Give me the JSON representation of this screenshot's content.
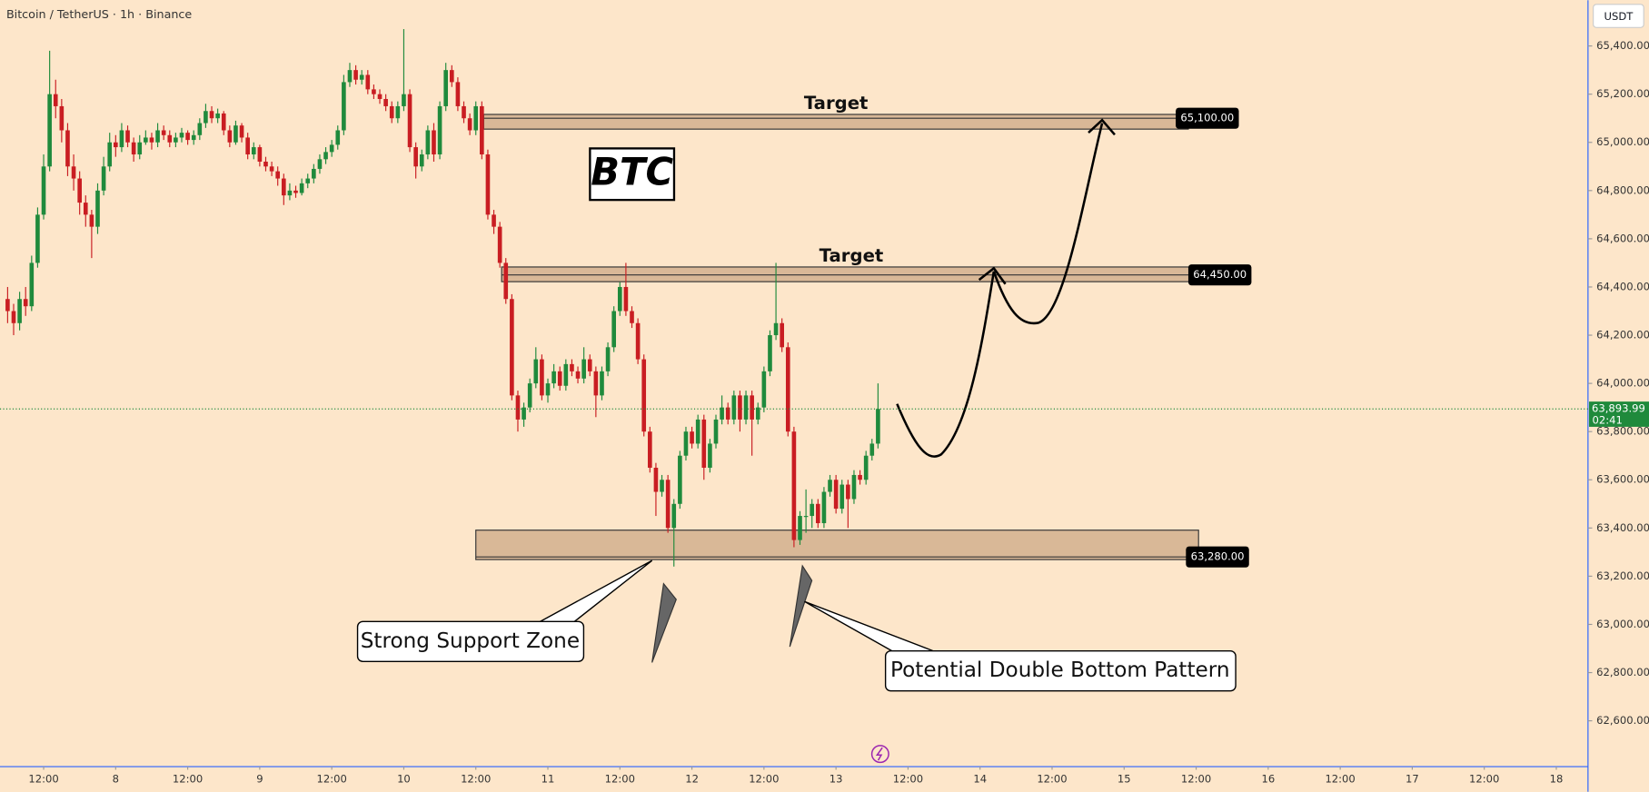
{
  "chart_data": {
    "type": "candlestick",
    "title": "Bitcoin / TetherUS · 1h · Binance",
    "currency": "USDT",
    "x": [
      -18,
      -17,
      -16,
      -15,
      -14,
      -13,
      -12,
      -11,
      -10,
      -9,
      -8,
      -7,
      -6,
      -5,
      -4,
      -3,
      -2,
      -1,
      0,
      1,
      2,
      3,
      4,
      5,
      6,
      7,
      8,
      9,
      10,
      11,
      12,
      13,
      14,
      15,
      16,
      17,
      18,
      19,
      20,
      21,
      22,
      23,
      24,
      25,
      26,
      27,
      28,
      29,
      30,
      31,
      32,
      33,
      34,
      35,
      36,
      37,
      38,
      39,
      40,
      41,
      42,
      43,
      44,
      45,
      46,
      47,
      48,
      49,
      50,
      51,
      52,
      53,
      54,
      55,
      56,
      57,
      58,
      59,
      60,
      61,
      62,
      63,
      64,
      65,
      66,
      67,
      68,
      69,
      70,
      71,
      72,
      73,
      74,
      75,
      76,
      77,
      78,
      79,
      80,
      81,
      82,
      83,
      84,
      85,
      86,
      87,
      88,
      89,
      90,
      91,
      92,
      93,
      94,
      95,
      96,
      97,
      98,
      99,
      100,
      101,
      102,
      103,
      104,
      105,
      106,
      107,
      108,
      109,
      110,
      111,
      112,
      113,
      114,
      115,
      116,
      117,
      118,
      119,
      120,
      121,
      122,
      123,
      124,
      125,
      126,
      127
    ],
    "ohlc": [
      [
        64350,
        64400,
        64250,
        64300
      ],
      [
        64300,
        64330,
        64200,
        64250
      ],
      [
        64250,
        64380,
        64220,
        64350
      ],
      [
        64350,
        64400,
        64280,
        64320
      ],
      [
        64320,
        64530,
        64300,
        64500
      ],
      [
        64500,
        64730,
        64480,
        64700
      ],
      [
        64700,
        64950,
        64680,
        64900
      ],
      [
        64900,
        65380,
        64880,
        65200
      ],
      [
        65200,
        65260,
        65100,
        65150
      ],
      [
        65150,
        65180,
        65000,
        65050
      ],
      [
        65050,
        65080,
        64860,
        64900
      ],
      [
        64900,
        64950,
        64800,
        64850
      ],
      [
        64850,
        64880,
        64700,
        64750
      ],
      [
        64750,
        64780,
        64650,
        64700
      ],
      [
        64700,
        64720,
        64520,
        64650
      ],
      [
        64650,
        64830,
        64620,
        64800
      ],
      [
        64800,
        64940,
        64780,
        64900
      ],
      [
        64900,
        65040,
        64880,
        65000
      ],
      [
        65000,
        65030,
        64940,
        64980
      ],
      [
        64980,
        65080,
        64960,
        65050
      ],
      [
        65050,
        65070,
        64980,
        65000
      ],
      [
        65000,
        65020,
        64920,
        64950
      ],
      [
        64950,
        65030,
        64930,
        65000
      ],
      [
        65000,
        65050,
        64990,
        65020
      ],
      [
        65020,
        65040,
        64970,
        65000
      ],
      [
        65000,
        65080,
        64980,
        65050
      ],
      [
        65050,
        65070,
        65010,
        65030
      ],
      [
        65030,
        65050,
        64980,
        65000
      ],
      [
        65000,
        65040,
        64980,
        65020
      ],
      [
        65020,
        65060,
        65000,
        65040
      ],
      [
        65040,
        65050,
        64990,
        65010
      ],
      [
        65010,
        65050,
        64990,
        65030
      ],
      [
        65030,
        65100,
        65010,
        65080
      ],
      [
        65080,
        65160,
        65060,
        65130
      ],
      [
        65130,
        65150,
        65080,
        65100
      ],
      [
        65100,
        65140,
        65080,
        65120
      ],
      [
        65120,
        65130,
        65030,
        65050
      ],
      [
        65050,
        65070,
        64980,
        65000
      ],
      [
        65000,
        65090,
        64990,
        65070
      ],
      [
        65070,
        65080,
        65000,
        65020
      ],
      [
        65020,
        65040,
        64930,
        64950
      ],
      [
        64950,
        65000,
        64930,
        64980
      ],
      [
        64980,
        64990,
        64900,
        64920
      ],
      [
        64920,
        64940,
        64880,
        64900
      ],
      [
        64900,
        64920,
        64860,
        64880
      ],
      [
        64880,
        64900,
        64820,
        64850
      ],
      [
        64850,
        64870,
        64740,
        64780
      ],
      [
        64780,
        64830,
        64760,
        64800
      ],
      [
        64800,
        64820,
        64770,
        64790
      ],
      [
        64790,
        64850,
        64780,
        64830
      ],
      [
        64830,
        64870,
        64810,
        64850
      ],
      [
        64850,
        64910,
        64830,
        64890
      ],
      [
        64890,
        64950,
        64870,
        64930
      ],
      [
        64930,
        64980,
        64910,
        64960
      ],
      [
        64960,
        65010,
        64940,
        64990
      ],
      [
        64990,
        65070,
        64970,
        65050
      ],
      [
        65050,
        65280,
        65030,
        65250
      ],
      [
        65250,
        65330,
        65230,
        65300
      ],
      [
        65300,
        65320,
        65240,
        65260
      ],
      [
        65260,
        65300,
        65240,
        65280
      ],
      [
        65280,
        65300,
        65200,
        65220
      ],
      [
        65220,
        65240,
        65180,
        65200
      ],
      [
        65200,
        65220,
        65160,
        65180
      ],
      [
        65180,
        65200,
        65130,
        65150
      ],
      [
        65150,
        65170,
        65080,
        65100
      ],
      [
        65100,
        65170,
        65080,
        65150
      ],
      [
        65150,
        65470,
        65130,
        65200
      ],
      [
        65200,
        65220,
        64960,
        64980
      ],
      [
        64980,
        65000,
        64850,
        64900
      ],
      [
        64900,
        64970,
        64880,
        64950
      ],
      [
        64950,
        65070,
        64930,
        65050
      ],
      [
        65050,
        65080,
        64920,
        64950
      ],
      [
        64950,
        65170,
        64930,
        65150
      ],
      [
        65150,
        65330,
        65130,
        65300
      ],
      [
        65300,
        65320,
        65230,
        65250
      ],
      [
        65250,
        65270,
        65130,
        65150
      ],
      [
        65150,
        65170,
        65080,
        65100
      ],
      [
        65100,
        65120,
        65030,
        65050
      ],
      [
        65050,
        65170,
        65030,
        65150
      ],
      [
        65150,
        65170,
        64930,
        64950
      ],
      [
        64950,
        64970,
        64680,
        64700
      ],
      [
        64700,
        64720,
        64620,
        64650
      ],
      [
        64650,
        64670,
        64480,
        64500
      ],
      [
        64500,
        64520,
        64330,
        64350
      ],
      [
        64350,
        64370,
        63930,
        63950
      ],
      [
        63950,
        63970,
        63800,
        63850
      ],
      [
        63850,
        63920,
        63820,
        63900
      ],
      [
        63900,
        64020,
        63880,
        64000
      ],
      [
        64000,
        64150,
        63980,
        64100
      ],
      [
        64100,
        64120,
        63930,
        63950
      ],
      [
        63950,
        64020,
        63920,
        64000
      ],
      [
        64000,
        64080,
        63980,
        64050
      ],
      [
        64050,
        64070,
        63970,
        63990
      ],
      [
        63990,
        64100,
        63970,
        64080
      ],
      [
        64080,
        64100,
        64030,
        64050
      ],
      [
        64050,
        64070,
        64000,
        64020
      ],
      [
        64020,
        64150,
        64000,
        64100
      ],
      [
        64100,
        64120,
        64030,
        64050
      ],
      [
        64050,
        64070,
        63860,
        63950
      ],
      [
        63950,
        64070,
        63930,
        64050
      ],
      [
        64050,
        64170,
        64030,
        64150
      ],
      [
        64150,
        64320,
        64130,
        64300
      ],
      [
        64300,
        64420,
        64280,
        64400
      ],
      [
        64400,
        64500,
        64280,
        64300
      ],
      [
        64300,
        64320,
        64230,
        64250
      ],
      [
        64250,
        64270,
        64080,
        64100
      ],
      [
        64100,
        64120,
        63780,
        63800
      ],
      [
        63800,
        63820,
        63630,
        63650
      ],
      [
        63650,
        63670,
        63450,
        63550
      ],
      [
        63550,
        63620,
        63530,
        63600
      ],
      [
        63600,
        63620,
        63380,
        63400
      ],
      [
        63400,
        63520,
        63240,
        63500
      ],
      [
        63500,
        63720,
        63480,
        63700
      ],
      [
        63700,
        63820,
        63680,
        63800
      ],
      [
        63800,
        63820,
        63730,
        63750
      ],
      [
        63750,
        63870,
        63730,
        63850
      ],
      [
        63850,
        63870,
        63600,
        63650
      ],
      [
        63650,
        63770,
        63630,
        63750
      ],
      [
        63750,
        63870,
        63730,
        63850
      ],
      [
        63850,
        63950,
        63830,
        63900
      ],
      [
        63900,
        63920,
        63830,
        63850
      ],
      [
        63850,
        63970,
        63830,
        63950
      ],
      [
        63950,
        63970,
        63800,
        63850
      ],
      [
        63850,
        63970,
        63830,
        63950
      ],
      [
        63950,
        63970,
        63700,
        63850
      ],
      [
        63850,
        63920,
        63830,
        63900
      ],
      [
        63900,
        64070,
        63880,
        64050
      ],
      [
        64050,
        64220,
        64030,
        64200
      ],
      [
        64200,
        64500,
        64180,
        64250
      ],
      [
        64250,
        64270,
        64130,
        64150
      ],
      [
        64150,
        64170,
        63780,
        63800
      ],
      [
        63800,
        63820,
        63320,
        63350
      ],
      [
        63350,
        63470,
        63330,
        63450
      ],
      [
        63450,
        63560,
        63380,
        63450
      ],
      [
        63450,
        63520,
        63400,
        63500
      ],
      [
        63500,
        63520,
        63400,
        63420
      ],
      [
        63420,
        63570,
        63400,
        63550
      ],
      [
        63550,
        63620,
        63530,
        63600
      ],
      [
        63600,
        63620,
        63460,
        63480
      ],
      [
        63480,
        63600,
        63460,
        63580
      ],
      [
        63580,
        63600,
        63400,
        63520
      ],
      [
        63520,
        63640,
        63500,
        63620
      ],
      [
        63620,
        63640,
        63580,
        63600
      ],
      [
        63600,
        63720,
        63580,
        63700
      ],
      [
        63700,
        63770,
        63680,
        63750
      ],
      [
        63750,
        64000,
        63730,
        63893.99
      ]
    ],
    "colors": {
      "up": "#1f8a3c",
      "down": "#c91d22"
    },
    "xlim": [
      -19.27,
      245.28
    ],
    "ylim": [
      62410,
      65590
    ],
    "xticks": [
      {
        "value": -12,
        "label": "12:00"
      },
      {
        "value": 0,
        "label": "8"
      },
      {
        "value": 12,
        "label": "12:00"
      },
      {
        "value": 24,
        "label": "9"
      },
      {
        "value": 36,
        "label": "12:00"
      },
      {
        "value": 48,
        "label": "10"
      },
      {
        "value": 60,
        "label": "12:00"
      },
      {
        "value": 72,
        "label": "11"
      },
      {
        "value": 84,
        "label": "12:00"
      },
      {
        "value": 96,
        "label": "12"
      },
      {
        "value": 108,
        "label": "12:00"
      },
      {
        "value": 120,
        "label": "13"
      },
      {
        "value": 132,
        "label": "12:00"
      },
      {
        "value": 144,
        "label": "14"
      },
      {
        "value": 156,
        "label": "12:00"
      },
      {
        "value": 168,
        "label": "15"
      },
      {
        "value": 180,
        "label": "12:00"
      },
      {
        "value": 192,
        "label": "16"
      },
      {
        "value": 204,
        "label": "12:00"
      },
      {
        "value": 216,
        "label": "17"
      },
      {
        "value": 228,
        "label": "12:00"
      },
      {
        "value": 240,
        "label": "18"
      }
    ],
    "yticks": [
      {
        "value": 62600,
        "label": "62,600.00"
      },
      {
        "value": 62800,
        "label": "62,800.00"
      },
      {
        "value": 63000,
        "label": "63,000.00"
      },
      {
        "value": 63200,
        "label": "63,200.00"
      },
      {
        "value": 63400,
        "label": "63,400.00"
      },
      {
        "value": 63600,
        "label": "63,600.00"
      },
      {
        "value": 63800,
        "label": "63,800.00"
      },
      {
        "value": 64000,
        "label": "64,000.00"
      },
      {
        "value": 64200,
        "label": "64,200.00"
      },
      {
        "value": 64400,
        "label": "64,400.00"
      },
      {
        "value": 64600,
        "label": "64,600.00"
      },
      {
        "value": 64800,
        "label": "64,800.00"
      },
      {
        "value": 65000,
        "label": "65,000.00"
      },
      {
        "value": 65200,
        "label": "65,200.00"
      },
      {
        "value": 65400,
        "label": "65,400.00"
      }
    ],
    "last_price": {
      "value": 63893.99,
      "label": "63,893.99"
    },
    "countdown": "02:41",
    "zones": [
      {
        "label": "Target",
        "price": {
          "value": 65100,
          "label": "65,100.00"
        },
        "low": 65055,
        "high": 65116,
        "start": 61.3,
        "end": 178.7
      },
      {
        "label": "Target",
        "price": {
          "value": 64450,
          "label": "64,450.00"
        },
        "low": 64422,
        "high": 64483,
        "start": 64.3,
        "end": 180.8
      },
      {
        "price": {
          "value": 63280,
          "label": "63,280.00"
        },
        "low": 63269,
        "high": 63391,
        "start": 60,
        "end": 180.4
      }
    ],
    "annotations": {
      "symbol": "BTC",
      "support": "Strong Support Zone",
      "pattern": "Potential Double Bottom Pattern"
    }
  }
}
